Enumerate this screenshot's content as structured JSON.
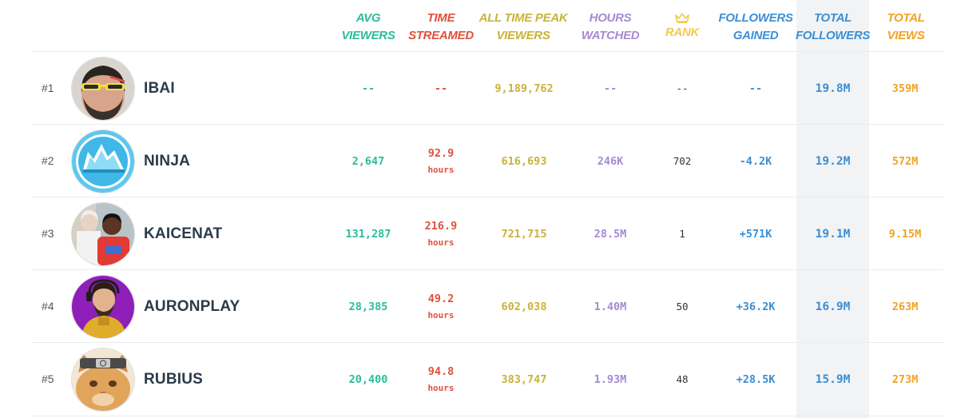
{
  "colors": {
    "avg_viewers": "#2bbd9a",
    "time_streamed": "#e0503c",
    "peak_viewers": "#c9b23a",
    "hours_watched": "#a889d4",
    "rank": "#f2c94c",
    "followers_gained": "#3b8fd4",
    "total_followers": "#3b8fd4",
    "total_views": "#f0a323",
    "sorted_column_bg": "#f1f3f5"
  },
  "headers": {
    "avg_viewers": [
      "AVG",
      "VIEWERS"
    ],
    "time_streamed": [
      "TIME",
      "STREAMED"
    ],
    "peak_viewers": [
      "ALL TIME PEAK",
      "VIEWERS"
    ],
    "hours_watched": [
      "HOURS",
      "WATCHED"
    ],
    "rank": {
      "icon": "crown-icon",
      "label": "RANK"
    },
    "followers_gained": [
      "FOLLOWERS",
      "GAINED"
    ],
    "total_followers": [
      "TOTAL",
      "FOLLOWERS"
    ],
    "total_views": [
      "TOTAL",
      "VIEWS"
    ]
  },
  "rows": [
    {
      "rank": "#1",
      "name": "IBAI",
      "avatar": "avatar-ibai",
      "avg_viewers": "--",
      "time_streamed": "--",
      "time_unit": "",
      "peak_viewers": "9,189,762",
      "hours_watched": "--",
      "channel_rank": "--",
      "followers_gained": "--",
      "total_followers": "19.8M",
      "total_views": "359M"
    },
    {
      "rank": "#2",
      "name": "NINJA",
      "avatar": "avatar-ninja",
      "avg_viewers": "2,647",
      "time_streamed": "92.9",
      "time_unit": "hours",
      "peak_viewers": "616,693",
      "hours_watched": "246K",
      "channel_rank": "702",
      "followers_gained": "-4.2K",
      "total_followers": "19.2M",
      "total_views": "572M"
    },
    {
      "rank": "#3",
      "name": "KAICENAT",
      "avatar": "avatar-kaicenat",
      "avg_viewers": "131,287",
      "time_streamed": "216.9",
      "time_unit": "hours",
      "peak_viewers": "721,715",
      "hours_watched": "28.5M",
      "channel_rank": "1",
      "followers_gained": "+571K",
      "total_followers": "19.1M",
      "total_views": "9.15M"
    },
    {
      "rank": "#4",
      "name": "AURONPLAY",
      "avatar": "avatar-auronplay",
      "avg_viewers": "28,385",
      "time_streamed": "49.2",
      "time_unit": "hours",
      "peak_viewers": "602,038",
      "hours_watched": "1.40M",
      "channel_rank": "50",
      "followers_gained": "+36.2K",
      "total_followers": "16.9M",
      "total_views": "263M"
    },
    {
      "rank": "#5",
      "name": "RUBIUS",
      "avatar": "avatar-rubius",
      "avg_viewers": "20,400",
      "time_streamed": "94.8",
      "time_unit": "hours",
      "peak_viewers": "383,747",
      "hours_watched": "1.93M",
      "channel_rank": "48",
      "followers_gained": "+28.5K",
      "total_followers": "15.9M",
      "total_views": "273M"
    }
  ]
}
